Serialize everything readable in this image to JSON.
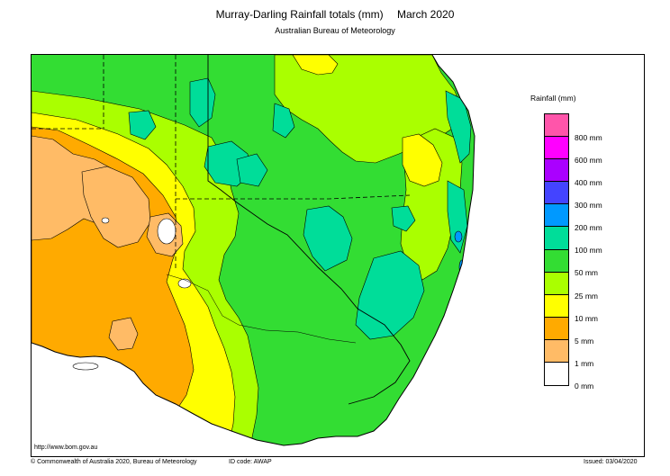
{
  "header": {
    "title": "Murray-Darling Rainfall totals (mm)",
    "period": "March 2020",
    "subtitle": "Australian Bureau of Meteorology"
  },
  "legend": {
    "title": "Rainfall (mm)",
    "classes": [
      {
        "color": "#ff55aa",
        "label": ""
      },
      {
        "color": "#ff00ff",
        "label": "800 mm"
      },
      {
        "color": "#aa00ff",
        "label": "600 mm"
      },
      {
        "color": "#4444ff",
        "label": "400 mm"
      },
      {
        "color": "#0099ff",
        "label": "300 mm"
      },
      {
        "color": "#00dd99",
        "label": "200 mm"
      },
      {
        "color": "#33dd33",
        "label": "100 mm"
      },
      {
        "color": "#aaff00",
        "label": "50 mm"
      },
      {
        "color": "#ffff00",
        "label": "25 mm"
      },
      {
        "color": "#ffaa00",
        "label": "10 mm"
      },
      {
        "color": "#ffbb66",
        "label": "5 mm"
      },
      {
        "color": "#ffffff",
        "label": "1 mm"
      },
      {
        "label": "0 mm"
      }
    ]
  },
  "map": {
    "colors": {
      "ocean": "#ffffff",
      "lt5": "#ffbb66",
      "lt10": "#ffaa00",
      "lt25": "#ffff00",
      "lt50": "#aaff00",
      "lt100": "#33dd33",
      "lt200": "#00dd99",
      "lt300": "#0099ff",
      "boundary": "#000000"
    }
  },
  "footer": {
    "url": "http://www.bom.gov.au",
    "copyright": "© Commonwealth of Australia 2020, Bureau of Meteorology",
    "id_code": "ID code: AWAP",
    "issued": "Issued: 03/04/2020"
  }
}
